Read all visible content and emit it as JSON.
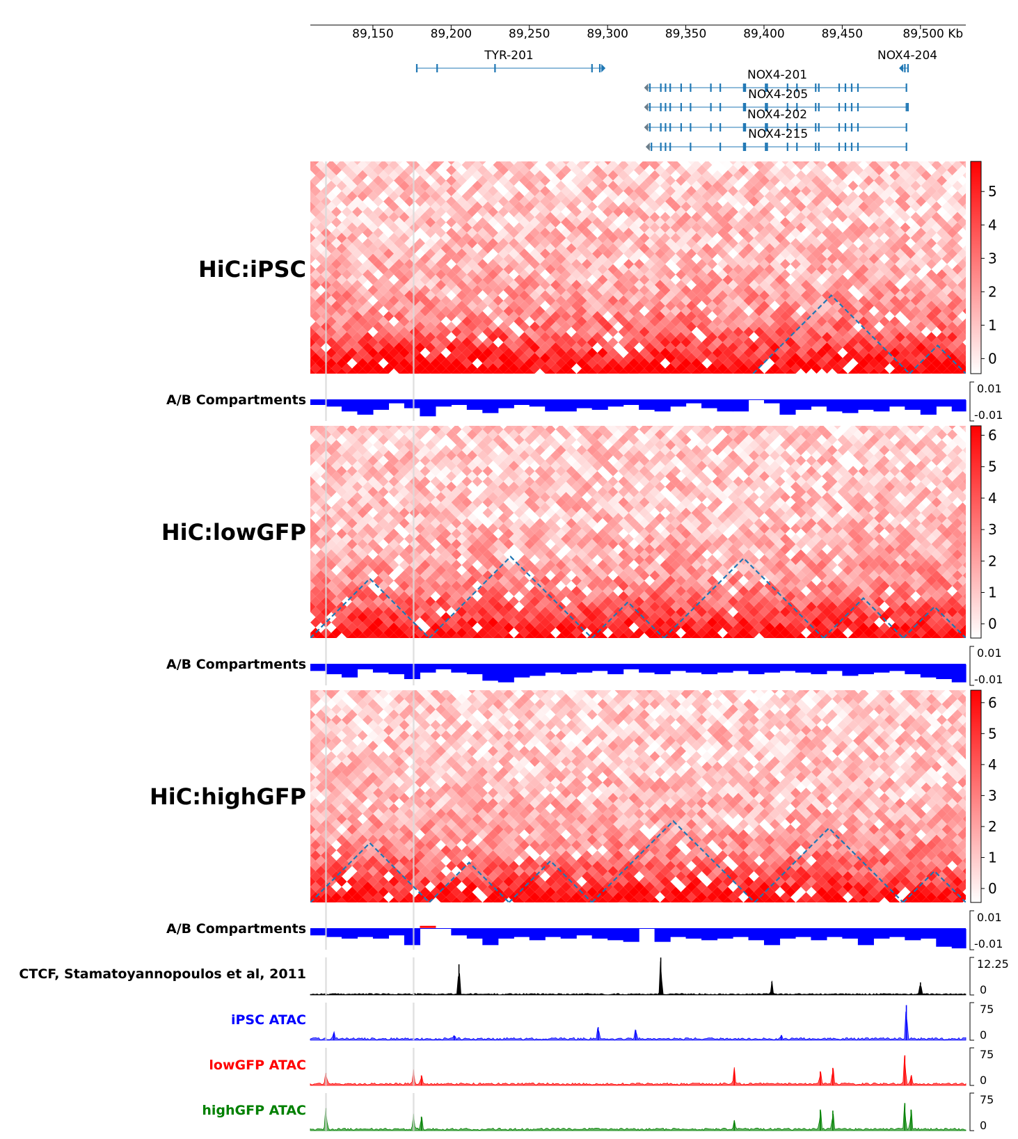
{
  "axis": {
    "ticks": [
      89150,
      89200,
      89250,
      89300,
      89350,
      89400,
      89450,
      89500
    ],
    "tick_labels": [
      "89,150",
      "89,200",
      "89,250",
      "89,300",
      "89,350",
      "89,400",
      "89,450",
      "89,500 Kb"
    ]
  },
  "genes": [
    {
      "name": "TYR-201",
      "start": 89178,
      "end": 89296,
      "strand": "+",
      "exons": [
        89178,
        89191,
        89228,
        89290,
        89295
      ]
    },
    {
      "name": "NOX4-204",
      "start": 89489,
      "end": 89492,
      "strand": "-",
      "exons": [
        89490,
        89492
      ]
    },
    {
      "name": "NOX4-201",
      "start": 89326,
      "end": 89491,
      "strand": "-",
      "exons": [
        89327,
        89334,
        89337,
        89340,
        89347,
        89353,
        89366,
        89372,
        89387,
        89388,
        89401,
        89402,
        89415,
        89421,
        89433,
        89435,
        89448,
        89452,
        89456,
        89460,
        89491
      ]
    },
    {
      "name": "NOX4-205",
      "start": 89326,
      "end": 89492,
      "strand": "-",
      "exons": [
        89327,
        89334,
        89337,
        89340,
        89347,
        89353,
        89366,
        89372,
        89387,
        89388,
        89401,
        89402,
        89415,
        89421,
        89433,
        89435,
        89448,
        89452,
        89456,
        89460,
        89491,
        89492
      ]
    },
    {
      "name": "NOX4-202",
      "start": 89326,
      "end": 89491,
      "strand": "-",
      "exons": [
        89327,
        89334,
        89337,
        89340,
        89347,
        89353,
        89366,
        89372,
        89387,
        89388,
        89401,
        89402,
        89415,
        89421,
        89433,
        89435,
        89448,
        89452,
        89456,
        89460,
        89491
      ]
    },
    {
      "name": "NOX4-215",
      "start": 89327,
      "end": 89491,
      "strand": "-",
      "exons": [
        89328,
        89334,
        89337,
        89340,
        89353,
        89372,
        89387,
        89388,
        89401,
        89402,
        89415,
        89421,
        89433,
        89435,
        89448,
        89452,
        89456,
        89460,
        89491
      ]
    }
  ],
  "tracks": {
    "hic1": {
      "label": "HiC:iPSC"
    },
    "cbar1": {
      "ticks": [
        "0",
        "1",
        "2",
        "3",
        "4",
        "5"
      ],
      "max": 5.9
    },
    "comp1": {
      "label": "A/B Compartments",
      "top": "0.01",
      "bottom": "-0.01"
    },
    "hic2": {
      "label": "HiC:lowGFP"
    },
    "cbar2": {
      "ticks": [
        "0",
        "1",
        "2",
        "3",
        "4",
        "5",
        "6"
      ],
      "max": 6.3
    },
    "comp2": {
      "label": "A/B Compartments",
      "top": "0.01",
      "bottom": "-0.01"
    },
    "hic3": {
      "label": "HiC:highGFP"
    },
    "cbar3": {
      "ticks": [
        "0",
        "1",
        "2",
        "3",
        "4",
        "5",
        "6"
      ],
      "max": 6.4
    },
    "comp3": {
      "label": "A/B Compartments",
      "top": "0.01",
      "bottom": "-0.01"
    },
    "ctcf": {
      "label": "CTCF, Stamatoyannopoulos et al, 2011",
      "top": "12.25",
      "bottom": "0"
    },
    "ipsc_atac": {
      "label": "iPSC ATAC",
      "top": "75",
      "bottom": "0"
    },
    "low_atac": {
      "label": "lowGFP ATAC",
      "top": "75",
      "bottom": "0"
    },
    "high_atac": {
      "label": "highGFP ATAC",
      "top": "75",
      "bottom": "0"
    }
  },
  "colors": {
    "heat": "#ff0000",
    "compartment": "#0000ff",
    "compartment_positive": "#ff0000",
    "gene": "#1f77b4",
    "tad": "#1f77b4",
    "ctcf": "#000000",
    "ipsc_atac": "#0000ff",
    "low_atac": "#ff0000",
    "high_atac": "#008000",
    "highlight": "#d9d9d9"
  },
  "chart_data": {
    "type": "heatmap",
    "xlim": [
      89110,
      89529
    ],
    "highlight_lines": [
      89120,
      89176
    ],
    "hic_maps": [
      {
        "name": "HiC:iPSC",
        "tad_boundaries": [
          89393,
          89493,
          89529
        ]
      },
      {
        "name": "HiC:lowGFP",
        "tad_boundaries": [
          89110,
          89186,
          89290,
          89336,
          89438,
          89489,
          89529
        ]
      },
      {
        "name": "HiC:highGFP",
        "tad_boundaries": [
          89110,
          89186,
          89237,
          89290,
          89394,
          89489,
          89529
        ]
      }
    ],
    "ab_compartments": [
      {
        "name": "A/B Compartments",
        "x": [
          89110,
          89120,
          89130,
          89140,
          89150,
          89160,
          89170,
          89180,
          89190,
          89200,
          89210,
          89220,
          89230,
          89240,
          89250,
          89260,
          89270,
          89280,
          89290,
          89300,
          89310,
          89320,
          89330,
          89340,
          89350,
          89360,
          89370,
          89380,
          89390,
          89400,
          89410,
          89420,
          89430,
          89440,
          89450,
          89460,
          89470,
          89480,
          89490,
          89500,
          89510,
          89520
        ],
        "values": [
          -0.003,
          -0.004,
          -0.007,
          -0.009,
          -0.006,
          -0.002,
          -0.005,
          -0.01,
          -0.004,
          -0.003,
          -0.006,
          -0.008,
          -0.005,
          -0.003,
          -0.004,
          -0.007,
          -0.007,
          -0.005,
          -0.006,
          -0.004,
          -0.003,
          -0.006,
          -0.007,
          -0.004,
          -0.002,
          -0.005,
          -0.007,
          -0.007,
          0.0,
          -0.002,
          -0.009,
          -0.006,
          -0.004,
          -0.007,
          -0.008,
          -0.006,
          -0.007,
          -0.004,
          -0.006,
          -0.009,
          -0.004,
          -0.007
        ]
      },
      {
        "name": "A/B Compartments",
        "x": [
          89110,
          89120,
          89130,
          89140,
          89150,
          89160,
          89170,
          89180,
          89190,
          89200,
          89210,
          89220,
          89230,
          89240,
          89250,
          89260,
          89270,
          89280,
          89290,
          89300,
          89310,
          89320,
          89330,
          89340,
          89350,
          89360,
          89370,
          89380,
          89390,
          89400,
          89410,
          89420,
          89430,
          89440,
          89450,
          89460,
          89470,
          89480,
          89490,
          89500,
          89510,
          89520
        ],
        "values": [
          -0.004,
          -0.006,
          -0.008,
          -0.003,
          -0.005,
          -0.006,
          -0.009,
          -0.005,
          -0.003,
          -0.005,
          -0.006,
          -0.01,
          -0.011,
          -0.008,
          -0.007,
          -0.005,
          -0.006,
          -0.005,
          -0.004,
          -0.006,
          -0.003,
          -0.005,
          -0.006,
          -0.004,
          -0.005,
          -0.006,
          -0.005,
          -0.004,
          -0.006,
          -0.005,
          -0.004,
          -0.005,
          -0.006,
          -0.004,
          -0.007,
          -0.006,
          -0.005,
          -0.004,
          -0.006,
          -0.008,
          -0.009,
          -0.011
        ]
      },
      {
        "name": "A/B Compartments",
        "x": [
          89110,
          89120,
          89130,
          89140,
          89150,
          89160,
          89170,
          89180,
          89190,
          89200,
          89210,
          89220,
          89230,
          89240,
          89250,
          89260,
          89270,
          89280,
          89290,
          89300,
          89310,
          89320,
          89330,
          89340,
          89350,
          89360,
          89370,
          89380,
          89390,
          89400,
          89410,
          89420,
          89430,
          89440,
          89450,
          89460,
          89470,
          89480,
          89490,
          89500,
          89510,
          89520
        ],
        "values": [
          -0.004,
          -0.005,
          -0.006,
          -0.005,
          -0.006,
          -0.004,
          -0.01,
          0.001,
          0.0,
          -0.004,
          -0.006,
          -0.01,
          -0.006,
          -0.005,
          -0.007,
          -0.005,
          -0.006,
          -0.004,
          -0.006,
          -0.007,
          -0.008,
          0.0,
          -0.008,
          -0.005,
          -0.006,
          -0.007,
          -0.006,
          -0.005,
          -0.007,
          -0.01,
          -0.006,
          -0.005,
          -0.007,
          -0.005,
          -0.006,
          -0.01,
          -0.006,
          -0.005,
          -0.007,
          -0.006,
          -0.011,
          -0.012
        ]
      }
    ],
    "signal_tracks": [
      {
        "name": "CTCF, Stamatoyannopoulos et al, 2011",
        "ymax": 12.25,
        "base": 0.3,
        "peaks": [
          [
            89205,
            10
          ],
          [
            89334,
            12.2
          ],
          [
            89405,
            4.3
          ],
          [
            89500,
            4.1
          ]
        ]
      },
      {
        "name": "iPSC ATAC",
        "ymax": 75,
        "base": 3,
        "peaks": [
          [
            89125,
            14
          ],
          [
            89202,
            8
          ],
          [
            89294,
            26
          ],
          [
            89318,
            20
          ],
          [
            89411,
            10
          ],
          [
            89491,
            70
          ]
        ]
      },
      {
        "name": "lowGFP ATAC",
        "ymax": 75,
        "base": 3,
        "peaks": [
          [
            89120,
            25
          ],
          [
            89176,
            28
          ],
          [
            89181,
            20
          ],
          [
            89381,
            32
          ],
          [
            89436,
            28
          ],
          [
            89444,
            35
          ],
          [
            89490,
            60
          ],
          [
            89494,
            18
          ]
        ]
      },
      {
        "name": "highGFP ATAC",
        "ymax": 75,
        "base": 3,
        "peaks": [
          [
            89120,
            45
          ],
          [
            89176,
            30
          ],
          [
            89181,
            28
          ],
          [
            89381,
            20
          ],
          [
            89436,
            42
          ],
          [
            89444,
            40
          ],
          [
            89490,
            55
          ],
          [
            89494,
            42
          ]
        ]
      }
    ]
  }
}
